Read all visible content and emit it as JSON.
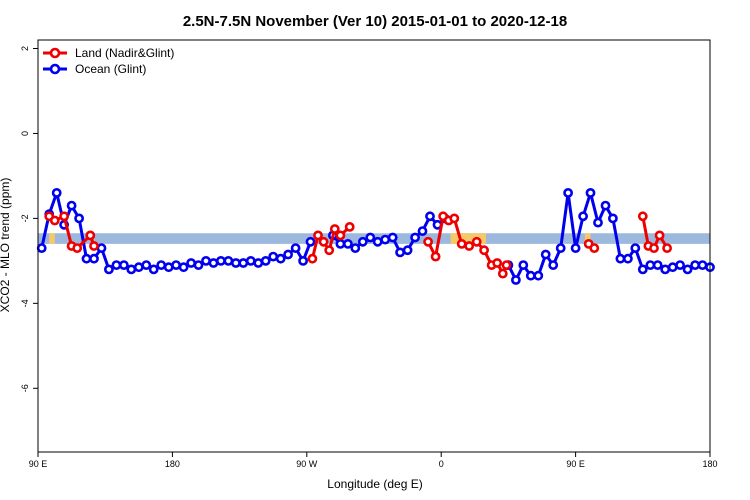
{
  "chart_data": {
    "type": "line",
    "title": "2.5N-7.5N November (Ver 10)   2015-01-01 to 2020-12-18",
    "xlabel": "Longitude (deg E)",
    "ylabel": "XCO2 - MLO trend (ppm)",
    "xlim": [
      90,
      450
    ],
    "ylim": [
      -7.5,
      2.2
    ],
    "x_ticks": [
      {
        "value": 90,
        "label": "90 E"
      },
      {
        "value": 162,
        "label": "180"
      },
      {
        "value": 234,
        "label": "90 W"
      },
      {
        "value": 306,
        "label": "0"
      },
      {
        "value": 378,
        "label": "90 E"
      },
      {
        "value": 450,
        "label": "180"
      }
    ],
    "y_ticks": [
      {
        "value": 2,
        "label": "2"
      },
      {
        "value": 0,
        "label": "0"
      },
      {
        "value": -2,
        "label": "-2"
      },
      {
        "value": -4,
        "label": "-4"
      },
      {
        "value": -6,
        "label": "-6"
      }
    ],
    "grid": false,
    "legend_position": "top-left",
    "band": {
      "y_low": -2.6,
      "y_high": -2.35,
      "color": "#9db8dd"
    },
    "land_highlights": [
      {
        "x_start": 96,
        "x_end": 99,
        "color": "#f5c96a"
      },
      {
        "x_start": 311,
        "x_end": 330,
        "color": "#f5c96a"
      },
      {
        "x_start": 383,
        "x_end": 386,
        "color": "#f5c96a"
      }
    ],
    "series": [
      {
        "name": "Land (Nadir&Glint)",
        "color": "#ee0000",
        "segments": [
          [
            [
              96,
              -1.95
            ],
            [
              99,
              -2.05
            ],
            [
              104,
              -1.95
            ],
            [
              108,
              -2.65
            ],
            [
              111,
              -2.7
            ],
            [
              118,
              -2.4
            ],
            [
              120,
              -2.65
            ]
          ],
          [
            [
              237,
              -2.95
            ],
            [
              240,
              -2.4
            ],
            [
              243,
              -2.55
            ],
            [
              246,
              -2.75
            ],
            [
              249,
              -2.25
            ],
            [
              252,
              -2.4
            ],
            [
              257,
              -2.2
            ]
          ],
          [
            [
              299,
              -2.55
            ],
            [
              303,
              -2.9
            ],
            [
              307,
              -1.95
            ],
            [
              310,
              -2.05
            ],
            [
              313,
              -2.0
            ],
            [
              317,
              -2.6
            ],
            [
              321,
              -2.65
            ],
            [
              325,
              -2.55
            ],
            [
              329,
              -2.75
            ],
            [
              333,
              -3.1
            ],
            [
              336,
              -3.05
            ],
            [
              339,
              -3.3
            ],
            [
              341,
              -3.1
            ]
          ],
          [
            [
              385,
              -2.6
            ],
            [
              388,
              -2.7
            ]
          ],
          [
            [
              414,
              -1.95
            ],
            [
              417,
              -2.65
            ],
            [
              420,
              -2.7
            ],
            [
              423,
              -2.4
            ],
            [
              427,
              -2.7
            ]
          ]
        ]
      },
      {
        "name": "Ocean (Glint)",
        "color": "#0000ee",
        "segments": [
          [
            [
              92,
              -2.7
            ],
            [
              96,
              -1.9
            ],
            [
              100,
              -1.4
            ],
            [
              104,
              -2.15
            ],
            [
              108,
              -1.7
            ],
            [
              112,
              -2.0
            ],
            [
              116,
              -2.95
            ],
            [
              120,
              -2.95
            ],
            [
              124,
              -2.7
            ],
            [
              128,
              -3.2
            ],
            [
              132,
              -3.1
            ],
            [
              136,
              -3.1
            ],
            [
              140,
              -3.2
            ],
            [
              144,
              -3.15
            ],
            [
              148,
              -3.1
            ],
            [
              152,
              -3.2
            ],
            [
              156,
              -3.1
            ],
            [
              160,
              -3.15
            ],
            [
              164,
              -3.1
            ],
            [
              168,
              -3.15
            ],
            [
              172,
              -3.05
            ],
            [
              176,
              -3.1
            ],
            [
              180,
              -3.0
            ],
            [
              184,
              -3.05
            ],
            [
              188,
              -3.0
            ],
            [
              192,
              -3.0
            ],
            [
              196,
              -3.05
            ],
            [
              200,
              -3.05
            ],
            [
              204,
              -3.0
            ],
            [
              208,
              -3.05
            ],
            [
              212,
              -3.0
            ],
            [
              216,
              -2.9
            ],
            [
              220,
              -2.95
            ],
            [
              224,
              -2.85
            ],
            [
              228,
              -2.7
            ],
            [
              232,
              -3.0
            ],
            [
              236,
              -2.55
            ]
          ],
          [
            [
              248,
              -2.4
            ],
            [
              252,
              -2.6
            ],
            [
              256,
              -2.6
            ],
            [
              260,
              -2.7
            ],
            [
              264,
              -2.55
            ],
            [
              268,
              -2.45
            ],
            [
              272,
              -2.55
            ],
            [
              276,
              -2.5
            ],
            [
              280,
              -2.45
            ],
            [
              284,
              -2.8
            ],
            [
              288,
              -2.75
            ],
            [
              292,
              -2.45
            ],
            [
              296,
              -2.3
            ],
            [
              300,
              -1.95
            ],
            [
              304,
              -2.15
            ],
            [
              308,
              -2.0
            ]
          ],
          [
            [
              342,
              -3.1
            ],
            [
              346,
              -3.45
            ],
            [
              350,
              -3.1
            ],
            [
              354,
              -3.35
            ],
            [
              358,
              -3.35
            ],
            [
              362,
              -2.85
            ],
            [
              366,
              -3.1
            ],
            [
              370,
              -2.7
            ],
            [
              374,
              -1.4
            ],
            [
              378,
              -2.7
            ],
            [
              382,
              -1.95
            ],
            [
              386,
              -1.4
            ],
            [
              390,
              -2.1
            ],
            [
              394,
              -1.7
            ],
            [
              398,
              -2.0
            ],
            [
              402,
              -2.95
            ],
            [
              406,
              -2.95
            ],
            [
              410,
              -2.7
            ],
            [
              414,
              -3.2
            ],
            [
              418,
              -3.1
            ],
            [
              422,
              -3.1
            ],
            [
              426,
              -3.2
            ],
            [
              430,
              -3.15
            ],
            [
              434,
              -3.1
            ],
            [
              438,
              -3.2
            ],
            [
              442,
              -3.1
            ],
            [
              446,
              -3.1
            ],
            [
              450,
              -3.15
            ]
          ]
        ]
      }
    ]
  }
}
